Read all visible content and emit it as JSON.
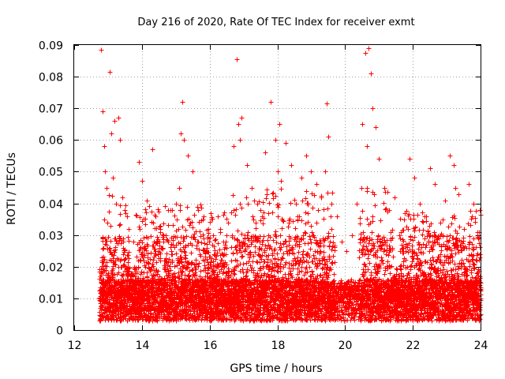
{
  "chart_data": {
    "type": "scatter",
    "title": "Day 216 of 2020, Rate Of TEC Index for receiver exmt",
    "xlabel": "GPS time / hours",
    "ylabel": "ROTI / TECUs",
    "xlim": [
      12,
      24
    ],
    "ylim": [
      0,
      0.09
    ],
    "x_ticks": [
      12,
      14,
      16,
      18,
      20,
      22,
      24
    ],
    "x_tick_labels": [
      "12",
      "14",
      "16",
      "18",
      "20",
      "22",
      "24"
    ],
    "y_ticks": [
      0,
      0.01,
      0.02,
      0.03,
      0.04,
      0.05,
      0.06,
      0.07,
      0.08,
      0.09
    ],
    "y_tick_labels": [
      "0",
      "0.01",
      "0.02",
      "0.03",
      "0.04",
      "0.05",
      "0.06",
      "0.07",
      "0.08",
      "0.09"
    ],
    "grid": true,
    "marker": "+",
    "color": "#ff0000",
    "series": [
      {
        "name": "ROTI",
        "x": [
          12.8,
          12.85,
          12.9,
          12.95,
          13.05,
          13.1,
          13.15,
          13.3,
          13.35,
          13.5,
          13.6,
          13.75,
          13.9,
          14.0,
          14.15,
          14.3,
          14.4,
          14.55,
          14.7,
          14.85,
          15.0,
          15.1,
          15.2,
          15.25,
          15.35,
          15.5,
          15.65,
          15.8,
          15.95,
          16.1,
          16.25,
          16.4,
          16.55,
          16.7,
          16.8,
          16.85,
          16.95,
          17.1,
          17.25,
          17.4,
          17.5,
          17.65,
          17.8,
          17.95,
          18.0,
          18.1,
          18.25,
          18.4,
          18.55,
          18.7,
          18.85,
          19.0,
          19.15,
          19.3,
          19.45,
          19.5,
          19.6,
          19.75,
          19.9,
          20.05,
          20.2,
          20.35,
          20.5,
          20.6,
          20.7,
          20.75,
          20.8,
          20.9,
          21.0,
          21.15,
          21.3,
          21.45,
          21.6,
          21.75,
          21.9,
          22.05,
          22.2,
          22.35,
          22.5,
          22.65,
          22.8,
          22.95,
          23.1,
          23.2,
          23.35,
          23.5,
          23.65,
          23.8,
          23.95,
          12.88,
          13.2,
          13.45,
          14.05,
          14.6,
          15.15,
          15.7,
          16.3,
          16.9,
          17.55,
          18.05,
          18.6,
          19.4,
          20.65,
          20.85,
          21.7,
          22.35,
          23.05,
          23.25,
          23.75
        ],
        "y": [
          0.0885,
          0.069,
          0.05,
          0.045,
          0.0815,
          0.062,
          0.048,
          0.067,
          0.06,
          0.038,
          0.032,
          0.028,
          0.053,
          0.047,
          0.041,
          0.057,
          0.036,
          0.032,
          0.03,
          0.038,
          0.04,
          0.045,
          0.072,
          0.06,
          0.055,
          0.05,
          0.038,
          0.035,
          0.032,
          0.03,
          0.036,
          0.028,
          0.034,
          0.058,
          0.0855,
          0.065,
          0.067,
          0.052,
          0.045,
          0.04,
          0.038,
          0.056,
          0.072,
          0.06,
          0.05,
          0.047,
          0.059,
          0.052,
          0.04,
          0.048,
          0.055,
          0.05,
          0.046,
          0.042,
          0.0715,
          0.061,
          0.04,
          0.036,
          0.028,
          0.025,
          0.03,
          0.04,
          0.065,
          0.0875,
          0.089,
          0.081,
          0.07,
          0.064,
          0.054,
          0.045,
          0.038,
          0.042,
          0.03,
          0.035,
          0.054,
          0.048,
          0.04,
          0.036,
          0.051,
          0.046,
          0.034,
          0.041,
          0.055,
          0.052,
          0.043,
          0.032,
          0.046,
          0.04,
          0.031,
          0.058,
          0.066,
          0.028,
          0.022,
          0.026,
          0.062,
          0.024,
          0.031,
          0.06,
          0.028,
          0.065,
          0.035,
          0.05,
          0.058,
          0.043,
          0.026,
          0.029,
          0.028,
          0.045,
          0.036
        ]
      }
    ],
    "density_profile": {
      "description": "baseline noise band of ROTI values between about 0.003 and 0.02 TECU/min across 12.7–24 h",
      "x_start": 12.75,
      "x_end": 24.0,
      "baseline_min": 0.003,
      "baseline_typical_max": 0.02,
      "dense_bursts": [
        {
          "x_from": 12.8,
          "x_to": 13.6,
          "upper": 0.045
        },
        {
          "x_from": 13.8,
          "x_to": 16.5,
          "upper": 0.04
        },
        {
          "x_from": 16.6,
          "x_to": 19.7,
          "upper": 0.045
        },
        {
          "x_from": 20.4,
          "x_to": 21.4,
          "upper": 0.045
        },
        {
          "x_from": 21.6,
          "x_to": 24.0,
          "upper": 0.038
        }
      ],
      "quiet_window": {
        "x_from": 19.7,
        "x_to": 20.4,
        "upper": 0.014
      }
    }
  }
}
